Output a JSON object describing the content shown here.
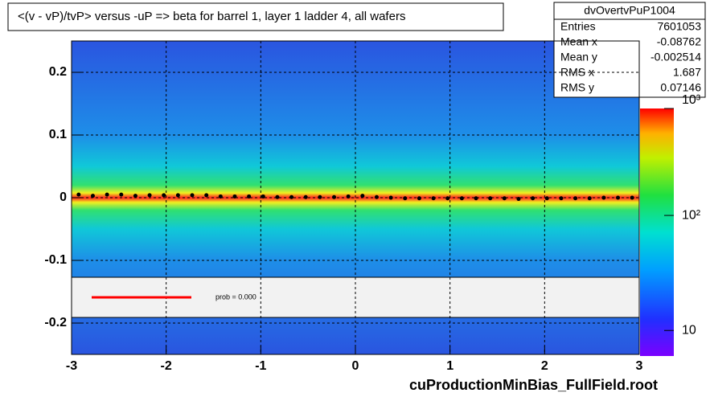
{
  "chart_data": {
    "type": "profile2d",
    "title": "<(v - vP)/tvP> versus  -uP => beta for barrel 1, layer 1 ladder 4, all wafers",
    "x_label": "cuProductionMinBias_FullField.root",
    "xlim": [
      -3,
      3
    ],
    "xticks": [
      -3,
      -2,
      -1,
      0,
      1,
      2,
      3
    ],
    "ylim": [
      -0.25,
      0.25
    ],
    "yticks": [
      -0.2,
      -0.1,
      0,
      0.1,
      0.2
    ],
    "zlim": [
      6,
      850
    ],
    "zlog": true,
    "zticks": [
      {
        "value": 10,
        "label": "10"
      },
      {
        "value": 100,
        "label": "10²"
      },
      {
        "value": 1000,
        "label": "10³"
      }
    ],
    "grid": true,
    "stats": {
      "name": "dvOvertvPuP1004",
      "rows": [
        [
          "Entries",
          "7601053"
        ],
        [
          "Mean x",
          "-0.08762"
        ],
        [
          "Mean y",
          "-0.002514"
        ],
        [
          "RMS x",
          "1.687"
        ],
        [
          "RMS y",
          "0.07146"
        ]
      ]
    },
    "legend_text": "prob = 0.000",
    "fit_color": "#ff0000",
    "series": [
      {
        "color": "#000000",
        "x": [
          -2.925,
          -2.775,
          -2.625,
          -2.475,
          -2.325,
          -2.175,
          -2.025,
          -1.875,
          -1.725,
          -1.575,
          -1.425,
          -1.275,
          -1.125,
          -0.975,
          -0.825,
          -0.675,
          -0.525,
          -0.375,
          -0.225,
          -0.075,
          0.075,
          0.225,
          0.375,
          0.525,
          0.675,
          0.825,
          0.975,
          1.125,
          1.275,
          1.425,
          1.575,
          1.725,
          1.875,
          2.025,
          2.175,
          2.325,
          2.475,
          2.625,
          2.775,
          2.925
        ],
        "values": [
          0.005,
          0.003,
          0.005,
          0.005,
          0.003,
          0.004,
          0.004,
          0.004,
          0.004,
          0.004,
          0.002,
          0.002,
          0.002,
          0.002,
          0.001,
          0.001,
          0.001,
          0.001,
          0.001,
          0.002,
          0.003,
          0.001,
          0.0,
          -0.001,
          -0.001,
          -0.001,
          -0.001,
          -0.001,
          -0.001,
          -0.001,
          -0.001,
          -0.002,
          -0.001,
          -0.001,
          -0.001,
          -0.001,
          -0.001,
          0.0,
          0.0,
          0.0
        ]
      }
    ]
  }
}
